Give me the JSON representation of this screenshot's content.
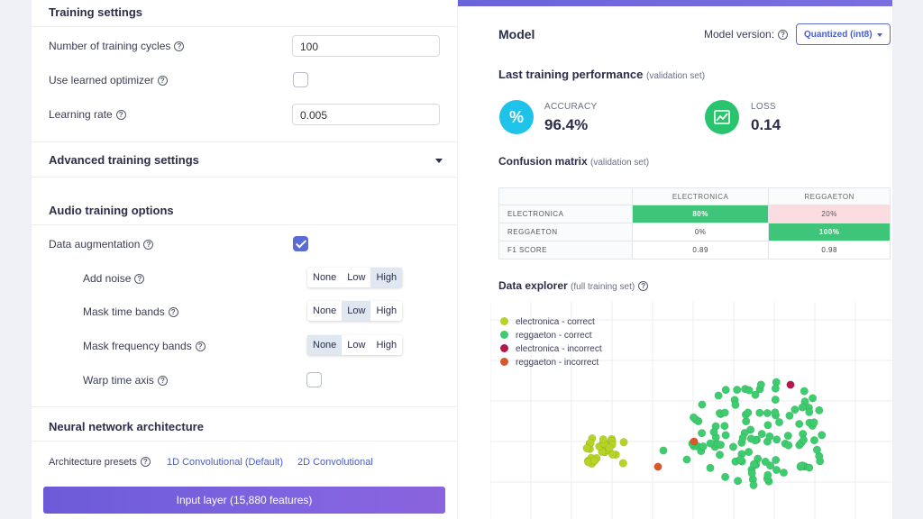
{
  "training": {
    "title": "Training settings",
    "cycles_label": "Number of training cycles",
    "cycles_value": "100",
    "optimizer_label": "Use learned optimizer",
    "lr_label": "Learning rate",
    "lr_value": "0.005",
    "advanced_label": "Advanced training settings"
  },
  "audio": {
    "title": "Audio training options",
    "augmentation_label": "Data augmentation",
    "add_noise_label": "Add noise",
    "mask_time_label": "Mask time bands",
    "mask_freq_label": "Mask frequency bands",
    "warp_label": "Warp time axis",
    "options": [
      "None",
      "Low",
      "High"
    ],
    "add_noise_selected": "High",
    "mask_time_selected": "Low",
    "mask_freq_selected": "None"
  },
  "nn": {
    "title": "Neural network architecture",
    "presets_label": "Architecture presets",
    "preset_1d": "1D Convolutional (Default)",
    "preset_2d": "2D Convolutional",
    "input_layer": "Input layer (15,880 features)"
  },
  "model": {
    "title": "Model",
    "version_label": "Model version:",
    "version_value": "Quantized (int8)",
    "perf_title": "Last training performance",
    "perf_sub": "(validation set)",
    "accuracy_label": "ACCURACY",
    "accuracy_value": "96.4%",
    "loss_label": "LOSS",
    "loss_value": "0.14",
    "accuracy_icon": "percent-icon",
    "loss_icon": "chart-line-icon"
  },
  "confusion": {
    "title": "Confusion matrix",
    "sub": "(validation set)",
    "cols": [
      "ELECTRONICA",
      "REGGAETON"
    ],
    "rows": [
      {
        "label": "ELECTRONICA",
        "cells": [
          "80%",
          "20%"
        ]
      },
      {
        "label": "REGGAETON",
        "cells": [
          "0%",
          "100%"
        ]
      },
      {
        "label": "F1 SCORE",
        "cells": [
          "0.89",
          "0.98"
        ]
      }
    ]
  },
  "explorer": {
    "title": "Data explorer",
    "sub": "(full training set)",
    "legend": [
      {
        "label": "electronica - correct",
        "color": "#b5d425"
      },
      {
        "label": "reggaeton - correct",
        "color": "#3dcc6e"
      },
      {
        "label": "electronica - incorrect",
        "color": "#b5184a"
      },
      {
        "label": "reggaeton - incorrect",
        "color": "#d9572a"
      }
    ]
  },
  "colors": {
    "accent": "#5a6bd6",
    "accuracy_icon_bg": "#1fc2e8",
    "loss_icon_bg": "#29c46e"
  }
}
